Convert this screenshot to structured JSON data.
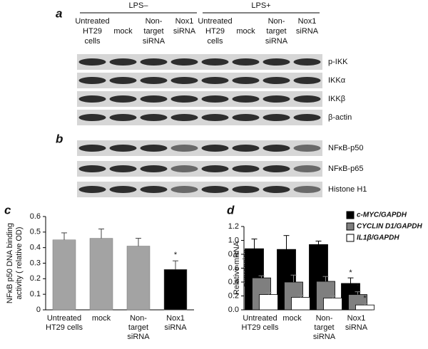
{
  "figure": {
    "panel_labels": [
      "a",
      "b",
      "c",
      "d"
    ],
    "conditions": [
      "LPS–",
      "LPS+"
    ],
    "lanes": [
      [
        "Untreated",
        "HT29",
        "cells"
      ],
      [
        "mock"
      ],
      [
        "Non-",
        "target",
        "siRNA"
      ],
      [
        "Nox1",
        "siRNA"
      ],
      [
        "Untreated",
        "HT29",
        "cells"
      ],
      [
        "mock"
      ],
      [
        "Non-",
        "target",
        "siRNA"
      ],
      [
        "Nox1",
        "siRNA"
      ]
    ],
    "blots_a": [
      "p-IKK",
      "IKKα",
      "IKKβ",
      "β-actin"
    ],
    "blots_b": [
      "NFκB-p50",
      "NFκB-p65",
      "Histone H1"
    ]
  },
  "chart_data": [
    {
      "type": "bar",
      "ylabel": [
        "NFκB p50 DNA binding",
        "activity ( relative OD)"
      ],
      "categories": [
        [
          "Untreated",
          "HT29 cells"
        ],
        [
          "mock"
        ],
        [
          "Non-",
          "target",
          "siRNA"
        ],
        [
          "Nox1",
          "siRNA"
        ]
      ],
      "values": [
        0.45,
        0.46,
        0.41,
        0.26
      ],
      "errors": [
        0.045,
        0.06,
        0.05,
        0.055
      ],
      "colors": [
        "#a3a3a3",
        "#a3a3a3",
        "#a3a3a3",
        "#000000"
      ],
      "annotations": [
        {
          "text": "*",
          "category": 3
        }
      ],
      "ylim": [
        0,
        0.6
      ],
      "yticks": [
        0,
        0.1,
        0.2,
        0.3,
        0.4,
        0.5,
        0.6
      ]
    },
    {
      "type": "overlap-bar",
      "ylabel": [
        "Relative mRNA",
        "expression"
      ],
      "categories": [
        [
          "Untreated",
          "HT29 cells"
        ],
        [
          "mock"
        ],
        [
          "Non-",
          "target",
          "siRNA"
        ],
        [
          "Nox1",
          "siRNA"
        ]
      ],
      "series": [
        {
          "name": "c-MYC/GAPDH",
          "color": "#000000",
          "values": [
            0.88,
            0.87,
            0.94,
            0.38
          ],
          "errors": [
            0.14,
            0.2,
            0.05,
            0.08
          ]
        },
        {
          "name": "CYCLIN D1/GAPDH",
          "color": "#7f7f7f",
          "values": [
            0.46,
            0.4,
            0.41,
            0.22
          ],
          "errors": [
            0.03,
            0.1,
            0.07,
            0.04
          ]
        },
        {
          "name": "IL1β/GAPDH",
          "color": "#ffffff",
          "values": [
            0.22,
            0.18,
            0.17,
            0.07
          ],
          "errors": [
            0.03,
            0.03,
            0.03,
            0.02
          ]
        }
      ],
      "annotations": [
        {
          "text": "*",
          "series": 0,
          "category": 3
        },
        {
          "text": "*",
          "series": 1,
          "category": 3
        },
        {
          "text": "*",
          "series": 2,
          "category": 3
        }
      ],
      "ylim": [
        0,
        1.2
      ],
      "yticks": [
        {
          "value": 0,
          "label": "0.0"
        },
        0.2,
        0.4,
        0.6,
        0.8,
        {
          "value": 1,
          "label": "1.0"
        },
        1.2
      ]
    }
  ]
}
